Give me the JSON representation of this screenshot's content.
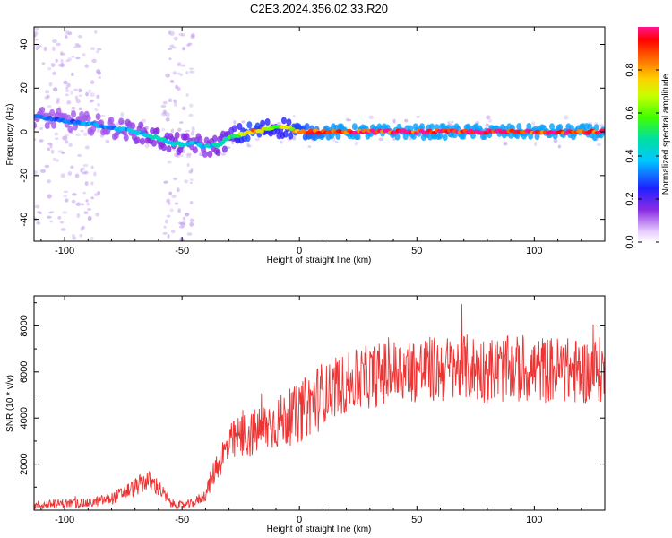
{
  "figure": {
    "title": "C2E3.2024.356.02.33.R20"
  },
  "colors": {
    "snr_line": "#ee3333",
    "ridge_low": "#8a2be2",
    "ridge_mid": "#00e0a0",
    "ridge_high": "#ff2020",
    "scatter": "#c8a8f0"
  },
  "chart_data": [
    {
      "type": "heatmap",
      "title": "",
      "xlabel": "Height of straight line (km)",
      "ylabel": "Frequency (Hz)",
      "xlim": [
        -113,
        130
      ],
      "ylim": [
        -50,
        48
      ],
      "xticks": [
        -100,
        -50,
        0,
        50,
        100
      ],
      "yticks": [
        -40,
        -20,
        0,
        20,
        40
      ],
      "grid": false,
      "ridge": {
        "x": [
          -113,
          -100,
          -90,
          -80,
          -70,
          -60,
          -55,
          -50,
          -45,
          -40,
          -35,
          -30,
          -25,
          -20,
          -15,
          -10,
          -5,
          0,
          10,
          20,
          40,
          60,
          80,
          100,
          130
        ],
        "y": [
          7,
          5,
          4,
          2,
          0,
          -3,
          -5,
          -6,
          -5,
          -7,
          -6,
          -3,
          -1,
          0,
          1,
          2,
          2,
          0,
          0,
          0,
          0,
          0,
          0,
          0,
          0
        ],
        "amplitude": [
          0.3,
          0.3,
          0.35,
          0.35,
          0.4,
          0.45,
          0.45,
          0.45,
          0.4,
          0.4,
          0.45,
          0.5,
          0.7,
          0.85,
          0.7,
          0.65,
          0.7,
          0.8,
          0.95,
          1.0,
          1.0,
          1.0,
          1.0,
          1.0,
          1.0
        ]
      },
      "colorbar": {
        "label": "Normalized spectral amplitude",
        "range": [
          0.0,
          1.0
        ],
        "ticks": [
          "0.0",
          "0.2",
          "0.4",
          "0.6",
          "0.8"
        ],
        "tick_values": [
          0.0,
          0.2,
          0.4,
          0.6,
          0.8
        ]
      }
    },
    {
      "type": "line",
      "title": "",
      "xlabel": "Height of straight line (km)",
      "ylabel": "SNR (10 * v/v)",
      "xlim": [
        -113,
        130
      ],
      "ylim": [
        0,
        9300
      ],
      "xticks": [
        -100,
        -50,
        0,
        50,
        100
      ],
      "yticks": [
        2000,
        4000,
        6000,
        8000
      ],
      "grid": false,
      "x": [
        -113,
        -100,
        -90,
        -80,
        -70,
        -65,
        -60,
        -55,
        -50,
        -45,
        -40,
        -35,
        -30,
        -25,
        -20,
        -15,
        -10,
        -5,
        0,
        5,
        10,
        15,
        20,
        30,
        40,
        50,
        60,
        70,
        80,
        90,
        100,
        110,
        120,
        130
      ],
      "y": [
        200,
        300,
        300,
        500,
        1000,
        1300,
        1000,
        300,
        200,
        300,
        700,
        2000,
        2800,
        3200,
        3300,
        3600,
        3800,
        4000,
        4200,
        4700,
        5000,
        5300,
        5500,
        5800,
        6000,
        6100,
        6100,
        6200,
        6100,
        6100,
        6100,
        6100,
        6000,
        6100
      ]
    }
  ]
}
